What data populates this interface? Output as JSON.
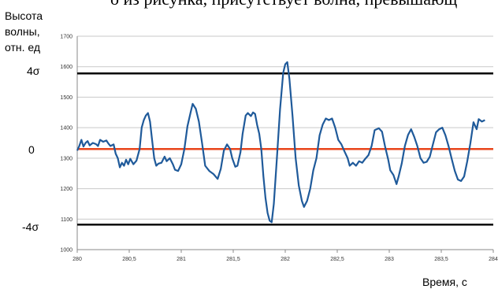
{
  "page": {
    "top_text_fragment": "о из рисунка, присутствует волна, превышающ",
    "y_title_lines": [
      "Высота",
      "волны,",
      "отн. ед"
    ],
    "x_title": "Время, с",
    "sigma_labels": {
      "upper": "4σ",
      "mean": "0",
      "lower": "-4σ"
    }
  },
  "chart_data": {
    "type": "line",
    "title": "",
    "xlabel": "Время, с",
    "ylabel": "Высота волны, отн. ед",
    "xlim": [
      280,
      284
    ],
    "ylim": [
      1000,
      1700
    ],
    "x_ticks": [
      280,
      280.5,
      281,
      281.5,
      282,
      282.5,
      283,
      283.5,
      284
    ],
    "x_tick_labels": [
      "280",
      "280,5",
      "281",
      "281,5",
      "282",
      "282,5",
      "283",
      "283,5",
      "284"
    ],
    "y_ticks": [
      1000,
      1100,
      1200,
      1300,
      1400,
      1500,
      1600,
      1700
    ],
    "y_tick_labels": [
      "1000",
      "1100",
      "1200",
      "1300",
      "1400",
      "1500",
      "1600",
      "1700"
    ],
    "grid": true,
    "reference_lines": [
      {
        "label": "4σ",
        "y": 1578,
        "color": "#000000"
      },
      {
        "label": "0",
        "y": 1330,
        "color": "#e8451b"
      },
      {
        "label": "-4σ",
        "y": 1082,
        "color": "#000000"
      }
    ],
    "series": [
      {
        "color": "#1f5a9a",
        "points": [
          [
            280.0,
            1325
          ],
          [
            280.02,
            1340
          ],
          [
            280.04,
            1360
          ],
          [
            280.06,
            1338
          ],
          [
            280.08,
            1350
          ],
          [
            280.1,
            1356
          ],
          [
            280.12,
            1342
          ],
          [
            280.15,
            1350
          ],
          [
            280.18,
            1346
          ],
          [
            280.2,
            1340
          ],
          [
            280.22,
            1360
          ],
          [
            280.25,
            1354
          ],
          [
            280.28,
            1358
          ],
          [
            280.3,
            1348
          ],
          [
            280.32,
            1340
          ],
          [
            280.35,
            1345
          ],
          [
            280.37,
            1315
          ],
          [
            280.39,
            1300
          ],
          [
            280.41,
            1270
          ],
          [
            280.43,
            1285
          ],
          [
            280.45,
            1275
          ],
          [
            280.47,
            1295
          ],
          [
            280.49,
            1280
          ],
          [
            280.51,
            1298
          ],
          [
            280.54,
            1280
          ],
          [
            280.57,
            1292
          ],
          [
            280.6,
            1330
          ],
          [
            280.62,
            1400
          ],
          [
            280.64,
            1425
          ],
          [
            280.66,
            1440
          ],
          [
            280.68,
            1448
          ],
          [
            280.7,
            1420
          ],
          [
            280.72,
            1360
          ],
          [
            280.74,
            1300
          ],
          [
            280.76,
            1275
          ],
          [
            280.78,
            1282
          ],
          [
            280.81,
            1285
          ],
          [
            280.84,
            1305
          ],
          [
            280.86,
            1290
          ],
          [
            280.89,
            1300
          ],
          [
            280.92,
            1280
          ],
          [
            280.94,
            1262
          ],
          [
            280.97,
            1258
          ],
          [
            281.0,
            1280
          ],
          [
            281.03,
            1330
          ],
          [
            281.06,
            1405
          ],
          [
            281.09,
            1450
          ],
          [
            281.11,
            1478
          ],
          [
            281.14,
            1462
          ],
          [
            281.17,
            1420
          ],
          [
            281.2,
            1350
          ],
          [
            281.23,
            1275
          ],
          [
            281.27,
            1258
          ],
          [
            281.31,
            1248
          ],
          [
            281.35,
            1232
          ],
          [
            281.38,
            1265
          ],
          [
            281.41,
            1325
          ],
          [
            281.44,
            1345
          ],
          [
            281.47,
            1330
          ],
          [
            281.49,
            1300
          ],
          [
            281.52,
            1272
          ],
          [
            281.54,
            1275
          ],
          [
            281.57,
            1320
          ],
          [
            281.59,
            1380
          ],
          [
            281.62,
            1440
          ],
          [
            281.64,
            1448
          ],
          [
            281.67,
            1438
          ],
          [
            281.69,
            1450
          ],
          [
            281.71,
            1445
          ],
          [
            281.73,
            1408
          ],
          [
            281.75,
            1380
          ],
          [
            281.77,
            1330
          ],
          [
            281.79,
            1240
          ],
          [
            281.81,
            1170
          ],
          [
            281.83,
            1120
          ],
          [
            281.85,
            1095
          ],
          [
            281.87,
            1090
          ],
          [
            281.89,
            1150
          ],
          [
            281.92,
            1300
          ],
          [
            281.95,
            1460
          ],
          [
            281.98,
            1580
          ],
          [
            282.0,
            1608
          ],
          [
            282.02,
            1615
          ],
          [
            282.04,
            1560
          ],
          [
            282.07,
            1440
          ],
          [
            282.1,
            1300
          ],
          [
            282.13,
            1210
          ],
          [
            282.16,
            1160
          ],
          [
            282.18,
            1140
          ],
          [
            282.21,
            1160
          ],
          [
            282.24,
            1200
          ],
          [
            282.27,
            1260
          ],
          [
            282.3,
            1300
          ],
          [
            282.33,
            1375
          ],
          [
            282.36,
            1410
          ],
          [
            282.39,
            1430
          ],
          [
            282.42,
            1425
          ],
          [
            282.45,
            1430
          ],
          [
            282.48,
            1400
          ],
          [
            282.51,
            1360
          ],
          [
            282.54,
            1345
          ],
          [
            282.57,
            1322
          ],
          [
            282.6,
            1300
          ],
          [
            282.62,
            1275
          ],
          [
            282.65,
            1285
          ],
          [
            282.68,
            1275
          ],
          [
            282.71,
            1290
          ],
          [
            282.74,
            1285
          ],
          [
            282.77,
            1298
          ],
          [
            282.8,
            1310
          ],
          [
            282.83,
            1340
          ],
          [
            282.86,
            1392
          ],
          [
            282.9,
            1398
          ],
          [
            282.93,
            1387
          ],
          [
            282.96,
            1338
          ],
          [
            282.99,
            1295
          ],
          [
            283.01,
            1260
          ],
          [
            283.04,
            1245
          ],
          [
            283.07,
            1215
          ],
          [
            283.09,
            1240
          ],
          [
            283.12,
            1282
          ],
          [
            283.15,
            1340
          ],
          [
            283.18,
            1376
          ],
          [
            283.21,
            1395
          ],
          [
            283.24,
            1370
          ],
          [
            283.27,
            1340
          ],
          [
            283.3,
            1300
          ],
          [
            283.33,
            1285
          ],
          [
            283.36,
            1288
          ],
          [
            283.39,
            1305
          ],
          [
            283.42,
            1345
          ],
          [
            283.45,
            1385
          ],
          [
            283.48,
            1395
          ],
          [
            283.51,
            1400
          ],
          [
            283.54,
            1375
          ],
          [
            283.57,
            1340
          ],
          [
            283.6,
            1298
          ],
          [
            283.63,
            1258
          ],
          [
            283.66,
            1230
          ],
          [
            283.69,
            1225
          ],
          [
            283.72,
            1240
          ],
          [
            283.75,
            1290
          ],
          [
            283.78,
            1350
          ],
          [
            283.81,
            1418
          ],
          [
            283.84,
            1395
          ],
          [
            283.86,
            1428
          ],
          [
            283.89,
            1420
          ],
          [
            283.92,
            1425
          ]
        ]
      }
    ]
  }
}
